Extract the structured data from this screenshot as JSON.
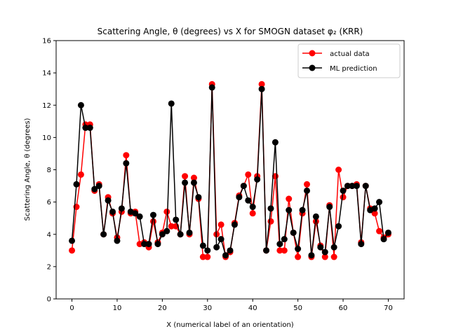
{
  "chart_data": {
    "type": "line",
    "title": "Scattering Angle, θ (degrees) vs X for SMOGN dataset φ₂ (KRR)",
    "xlabel": "X (numerical label of an orientation)",
    "ylabel": "Scattering Angle, θ (degrees)",
    "xlim": [
      -3.5,
      73.5
    ],
    "ylim": [
      0,
      16
    ],
    "xticks": [
      0,
      10,
      20,
      30,
      40,
      50,
      60,
      70
    ],
    "yticks": [
      0,
      2,
      4,
      6,
      8,
      10,
      12,
      14,
      16
    ],
    "grid": false,
    "legend_position": "top-right",
    "x": [
      0,
      1,
      2,
      3,
      4,
      5,
      6,
      7,
      8,
      9,
      10,
      11,
      12,
      13,
      14,
      15,
      16,
      17,
      18,
      19,
      20,
      21,
      22,
      23,
      24,
      25,
      26,
      27,
      28,
      29,
      30,
      31,
      32,
      33,
      34,
      35,
      36,
      37,
      38,
      39,
      40,
      41,
      42,
      43,
      44,
      45,
      46,
      47,
      48,
      49,
      50,
      51,
      52,
      53,
      54,
      55,
      56,
      57,
      58,
      59,
      60,
      61,
      62,
      63,
      64,
      65,
      66,
      67,
      68,
      69,
      70
    ],
    "series": [
      {
        "name": " actual data",
        "color": "#ff0000",
        "marker": "circle",
        "values": [
          3.0,
          5.7,
          7.7,
          10.8,
          10.8,
          6.7,
          7.1,
          4.0,
          6.3,
          5.3,
          3.8,
          5.4,
          8.9,
          5.3,
          5.4,
          3.4,
          3.5,
          3.2,
          4.8,
          3.5,
          4.1,
          5.4,
          4.5,
          4.5,
          4.0,
          7.6,
          4.0,
          7.5,
          6.2,
          2.6,
          2.6,
          13.3,
          4.0,
          4.6,
          2.6,
          2.9,
          4.7,
          6.4,
          7.0,
          7.7,
          5.3,
          7.6,
          13.3,
          3.0,
          4.8,
          7.6,
          3.0,
          3.0,
          6.2,
          4.1,
          2.6,
          5.3,
          7.1,
          2.6,
          4.8,
          3.3,
          2.6,
          5.8,
          2.6,
          8.0,
          6.3,
          7.0,
          7.0,
          7.1,
          3.5,
          7.0,
          5.6,
          5.3,
          4.2,
          3.8,
          4.0
        ]
      },
      {
        "name": "ML prediction",
        "color": "#000000",
        "marker": "circle",
        "values": [
          3.6,
          7.1,
          12.0,
          10.6,
          10.6,
          6.8,
          7.0,
          4.0,
          6.1,
          5.4,
          3.6,
          5.6,
          8.4,
          5.4,
          5.3,
          5.1,
          3.4,
          3.4,
          5.2,
          3.4,
          4.0,
          4.2,
          12.1,
          4.9,
          4.0,
          7.2,
          4.1,
          7.2,
          6.3,
          3.3,
          3.0,
          13.1,
          3.2,
          3.7,
          2.7,
          3.0,
          4.6,
          6.3,
          7.0,
          6.1,
          5.7,
          7.4,
          13.0,
          3.0,
          5.6,
          9.7,
          3.4,
          3.7,
          5.5,
          4.1,
          3.1,
          5.5,
          6.7,
          2.7,
          5.1,
          3.2,
          2.9,
          5.7,
          3.2,
          4.5,
          6.7,
          7.0,
          7.0,
          7.0,
          3.4,
          7.0,
          5.5,
          5.6,
          6.0,
          3.7,
          4.1
        ]
      }
    ]
  }
}
